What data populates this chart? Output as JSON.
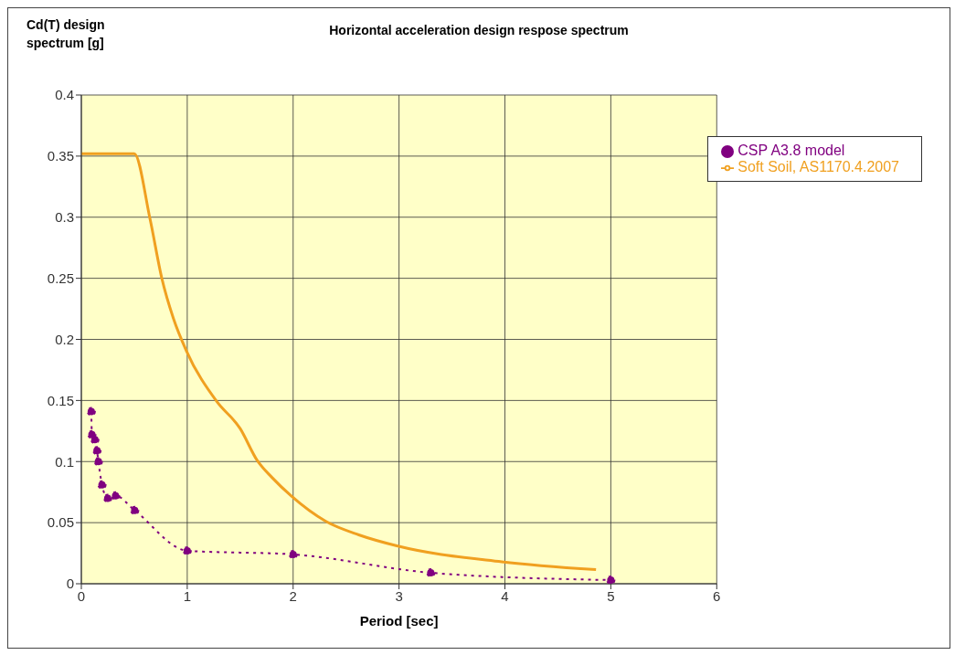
{
  "chart_data": {
    "type": "line",
    "title": "Horizontal acceleration design respose spectrum",
    "ylabel": "Cd(T) design spectrum [g]",
    "xlabel": "Period [sec]",
    "xlim": [
      0,
      6
    ],
    "xticks": [
      0,
      1,
      2,
      3,
      4,
      5,
      6
    ],
    "ylim": [
      0,
      0.4
    ],
    "yticks": [
      0,
      0.05,
      0.1,
      0.15,
      0.2,
      0.25,
      0.3,
      0.35,
      0.4
    ],
    "grid": true,
    "legend": "top right",
    "series": [
      {
        "name": "Soft Soil, AS1170.4.2007",
        "color": "#f0a020",
        "marker": "none",
        "line_style": "solid",
        "x": [
          0,
          0.5,
          0.65,
          0.76,
          0.87,
          0.99,
          1.28,
          1.5,
          1.66,
          1.8,
          1.98,
          2.31,
          2.62,
          2.98,
          3.97,
          4.86
        ],
        "values": [
          0.352,
          0.352,
          0.298,
          0.25,
          0.217,
          0.191,
          0.149,
          0.127,
          0.101,
          0.087,
          0.072,
          0.051,
          0.04,
          0.031,
          0.018,
          0.0115
        ]
      },
      {
        "name": "CSP A3.8 model",
        "color": "#800080",
        "marker": "circle",
        "line_style": "dotted",
        "x": [
          0.094,
          0.1,
          0.128,
          0.148,
          0.161,
          0.195,
          0.249,
          0.323,
          0.504,
          1,
          2,
          3.3,
          5
        ],
        "values": [
          0.141,
          0.122,
          0.118,
          0.109,
          0.1,
          0.081,
          0.07,
          0.072,
          0.06,
          0.027,
          0.024,
          0.009,
          0.003
        ]
      }
    ]
  }
}
